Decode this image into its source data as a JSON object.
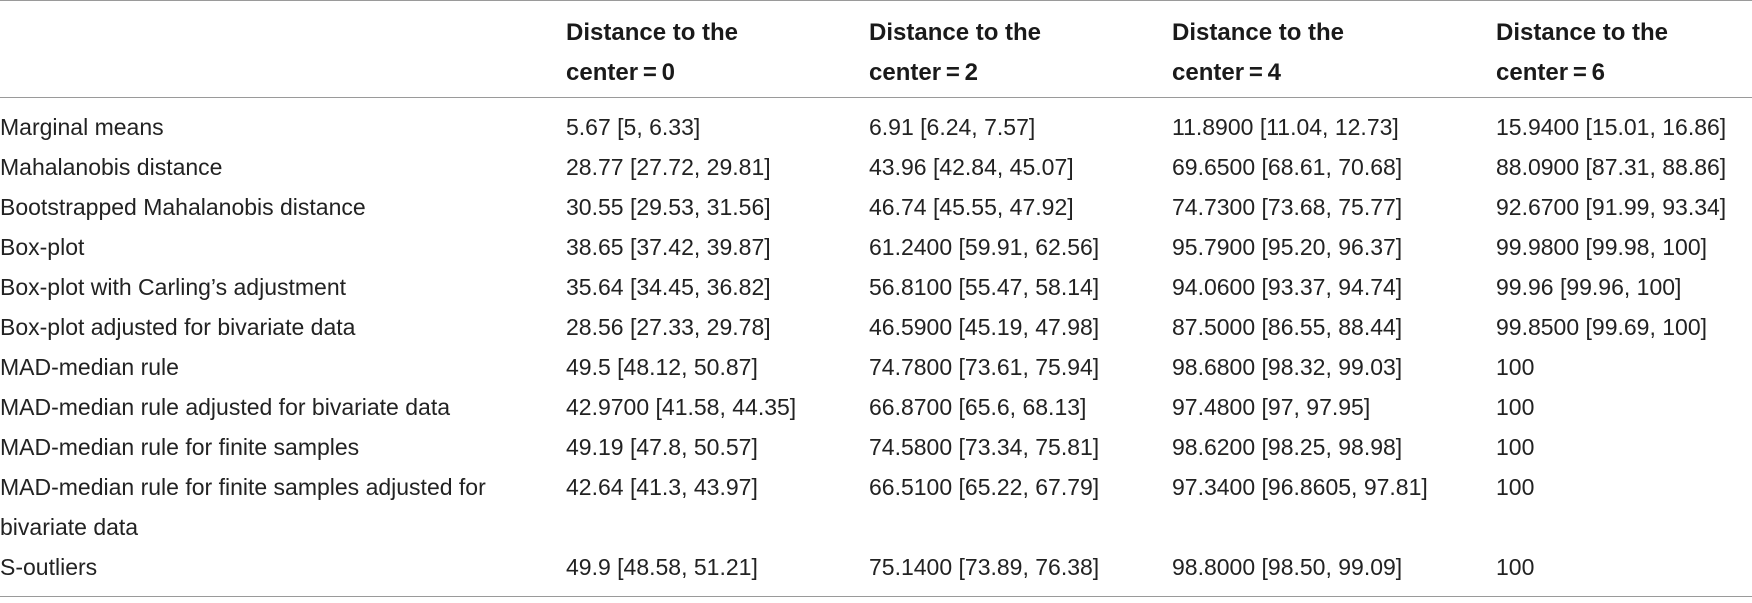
{
  "table": {
    "header": {
      "col0": "",
      "cols": [
        {
          "line1": "Distance to the",
          "line2": "center = 0"
        },
        {
          "line1": "Distance to the",
          "line2": "center = 2"
        },
        {
          "line1": "Distance to the",
          "line2": "center = 4"
        },
        {
          "line1": "Distance to the",
          "line2": "center = 6"
        }
      ]
    },
    "rows": [
      {
        "label": "Marginal means",
        "values": [
          "5.67 [5, 6.33]",
          "6.91 [6.24, 7.57]",
          "11.8900 [11.04, 12.73]",
          "15.9400 [15.01, 16.86]"
        ]
      },
      {
        "label": "Mahalanobis distance",
        "values": [
          "28.77 [27.72, 29.81]",
          "43.96 [42.84, 45.07]",
          "69.6500 [68.61, 70.68]",
          "88.0900 [87.31, 88.86]"
        ]
      },
      {
        "label": "Bootstrapped Mahalanobis distance",
        "values": [
          "30.55 [29.53, 31.56]",
          "46.74 [45.55, 47.92]",
          "74.7300 [73.68, 75.77]",
          "92.6700 [91.99, 93.34]"
        ]
      },
      {
        "label": "Box-plot",
        "values": [
          "38.65 [37.42, 39.87]",
          "61.2400 [59.91, 62.56]",
          "95.7900 [95.20, 96.37]",
          "99.9800 [99.98, 100]"
        ]
      },
      {
        "label": "Box-plot with Carling’s adjustment",
        "values": [
          "35.64 [34.45, 36.82]",
          "56.8100 [55.47, 58.14]",
          "94.0600 [93.37, 94.74]",
          "99.96 [99.96, 100]"
        ]
      },
      {
        "label": "Box-plot adjusted for bivariate data",
        "values": [
          "28.56 [27.33, 29.78]",
          "46.5900 [45.19, 47.98]",
          "87.5000 [86.55, 88.44]",
          "99.8500 [99.69, 100]"
        ]
      },
      {
        "label": "MAD-median rule",
        "values": [
          "49.5 [48.12, 50.87]",
          "74.7800 [73.61, 75.94]",
          "98.6800 [98.32, 99.03]",
          "100"
        ]
      },
      {
        "label": "MAD-median rule adjusted for bivariate data",
        "values": [
          "42.9700 [41.58, 44.35]",
          "66.8700 [65.6, 68.13]",
          "97.4800 [97, 97.95]",
          "100"
        ]
      },
      {
        "label": "MAD-median rule for finite samples",
        "values": [
          "49.19 [47.8, 50.57]",
          "74.5800 [73.34, 75.81]",
          "98.6200 [98.25, 98.98]",
          "100"
        ]
      },
      {
        "label": "MAD-median rule for finite samples adjusted for bivariate data",
        "values": [
          "42.64 [41.3, 43.97]",
          "66.5100 [65.22, 67.79]",
          "97.3400 [96.8605, 97.81]",
          "100"
        ]
      },
      {
        "label": "S-outliers",
        "values": [
          "49.9 [48.58, 51.21]",
          "75.1400 [73.89, 76.38]",
          "98.8000 [98.50, 99.09]",
          "100"
        ]
      }
    ]
  }
}
